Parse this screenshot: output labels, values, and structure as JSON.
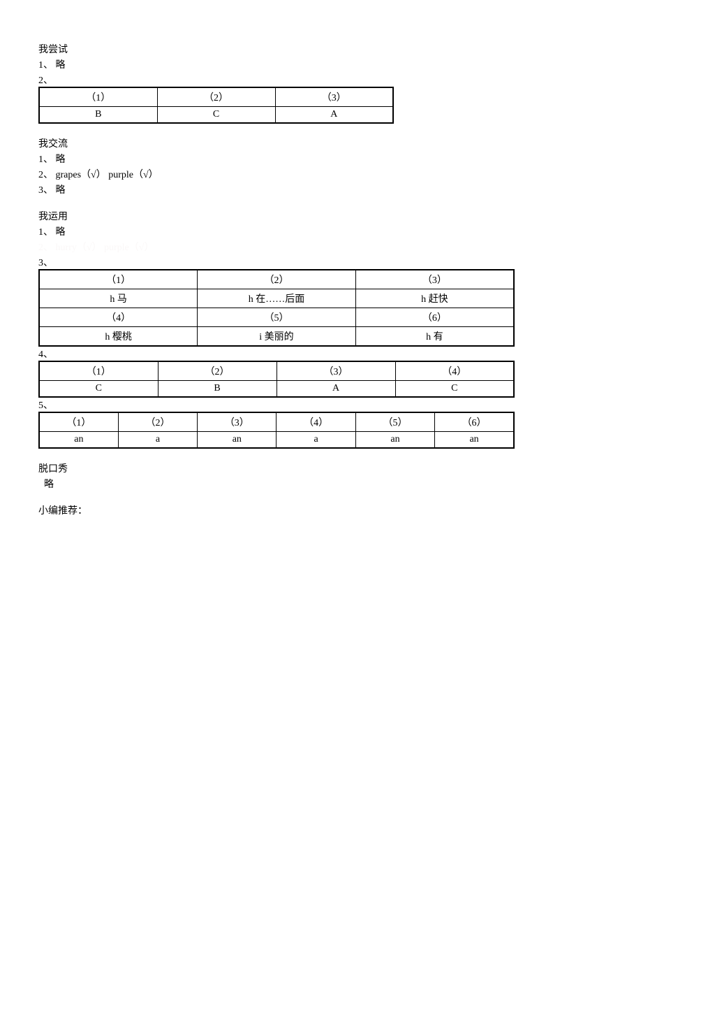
{
  "section1": {
    "title": "我尝试",
    "item1": "1、 略",
    "item2": "2、",
    "table": {
      "header": [
        "（1）",
        "（2）",
        "（3）"
      ],
      "row": [
        "B",
        "C",
        "A"
      ]
    }
  },
  "section2": {
    "title": "我交流",
    "item1": "1、 略",
    "item2": "2、 grapes（√）  purple（√）",
    "item3": "3、 略"
  },
  "section3": {
    "title": "我运用",
    "item1": "1、 略",
    "item2": "2、 hurry（√）  purple（√）",
    "item3_label": "3、",
    "table3": {
      "row1": [
        "（1）",
        "（2）",
        "（3）"
      ],
      "row2": [
        "h  马",
        "h  在……后面",
        "h  赶快"
      ],
      "row3": [
        "（4）",
        "（5）",
        "（6）"
      ],
      "row4": [
        "h  樱桃",
        "i  美丽的",
        "h  有"
      ]
    },
    "item4_label": "4、",
    "table4": {
      "header": [
        "（1）",
        "（2）",
        "（3）",
        "（4）"
      ],
      "row": [
        "C",
        "B",
        "A",
        "C"
      ]
    },
    "item5_label": "5、",
    "table5": {
      "header": [
        "（1）",
        "（2）",
        "（3）",
        "（4）",
        "（5）",
        "（6）"
      ],
      "row": [
        "an",
        "a",
        "an",
        "a",
        "an",
        "an"
      ]
    }
  },
  "section4": {
    "title": "脱口秀",
    "content": " 略"
  },
  "section5": {
    "title": "小编推荐："
  }
}
